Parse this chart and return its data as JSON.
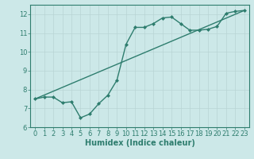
{
  "line1_x": [
    0,
    1,
    2,
    3,
    4,
    5,
    6,
    7,
    8,
    9,
    10,
    11,
    12,
    13,
    14,
    15,
    16,
    17,
    18,
    19,
    20,
    21,
    22,
    23
  ],
  "line1_y": [
    7.5,
    7.6,
    7.6,
    7.3,
    7.35,
    6.5,
    6.7,
    7.25,
    7.7,
    8.5,
    10.4,
    11.3,
    11.3,
    11.5,
    11.8,
    11.85,
    11.5,
    11.15,
    11.15,
    11.2,
    11.35,
    12.05,
    12.15,
    12.2
  ],
  "line2_x": [
    0,
    23
  ],
  "line2_y": [
    7.5,
    12.2
  ],
  "color": "#2e7d6e",
  "bg_color": "#cce8e8",
  "grid_color": "#b8d4d4",
  "xlabel": "Humidex (Indice chaleur)",
  "xlim": [
    -0.5,
    23.5
  ],
  "ylim": [
    6,
    12.5
  ],
  "yticks": [
    6,
    7,
    8,
    9,
    10,
    11,
    12
  ],
  "xticks": [
    0,
    1,
    2,
    3,
    4,
    5,
    6,
    7,
    8,
    9,
    10,
    11,
    12,
    13,
    14,
    15,
    16,
    17,
    18,
    19,
    20,
    21,
    22,
    23
  ],
  "marker": "D",
  "marker_size": 2,
  "line_width": 1.0,
  "tick_fontsize": 6,
  "xlabel_fontsize": 7
}
